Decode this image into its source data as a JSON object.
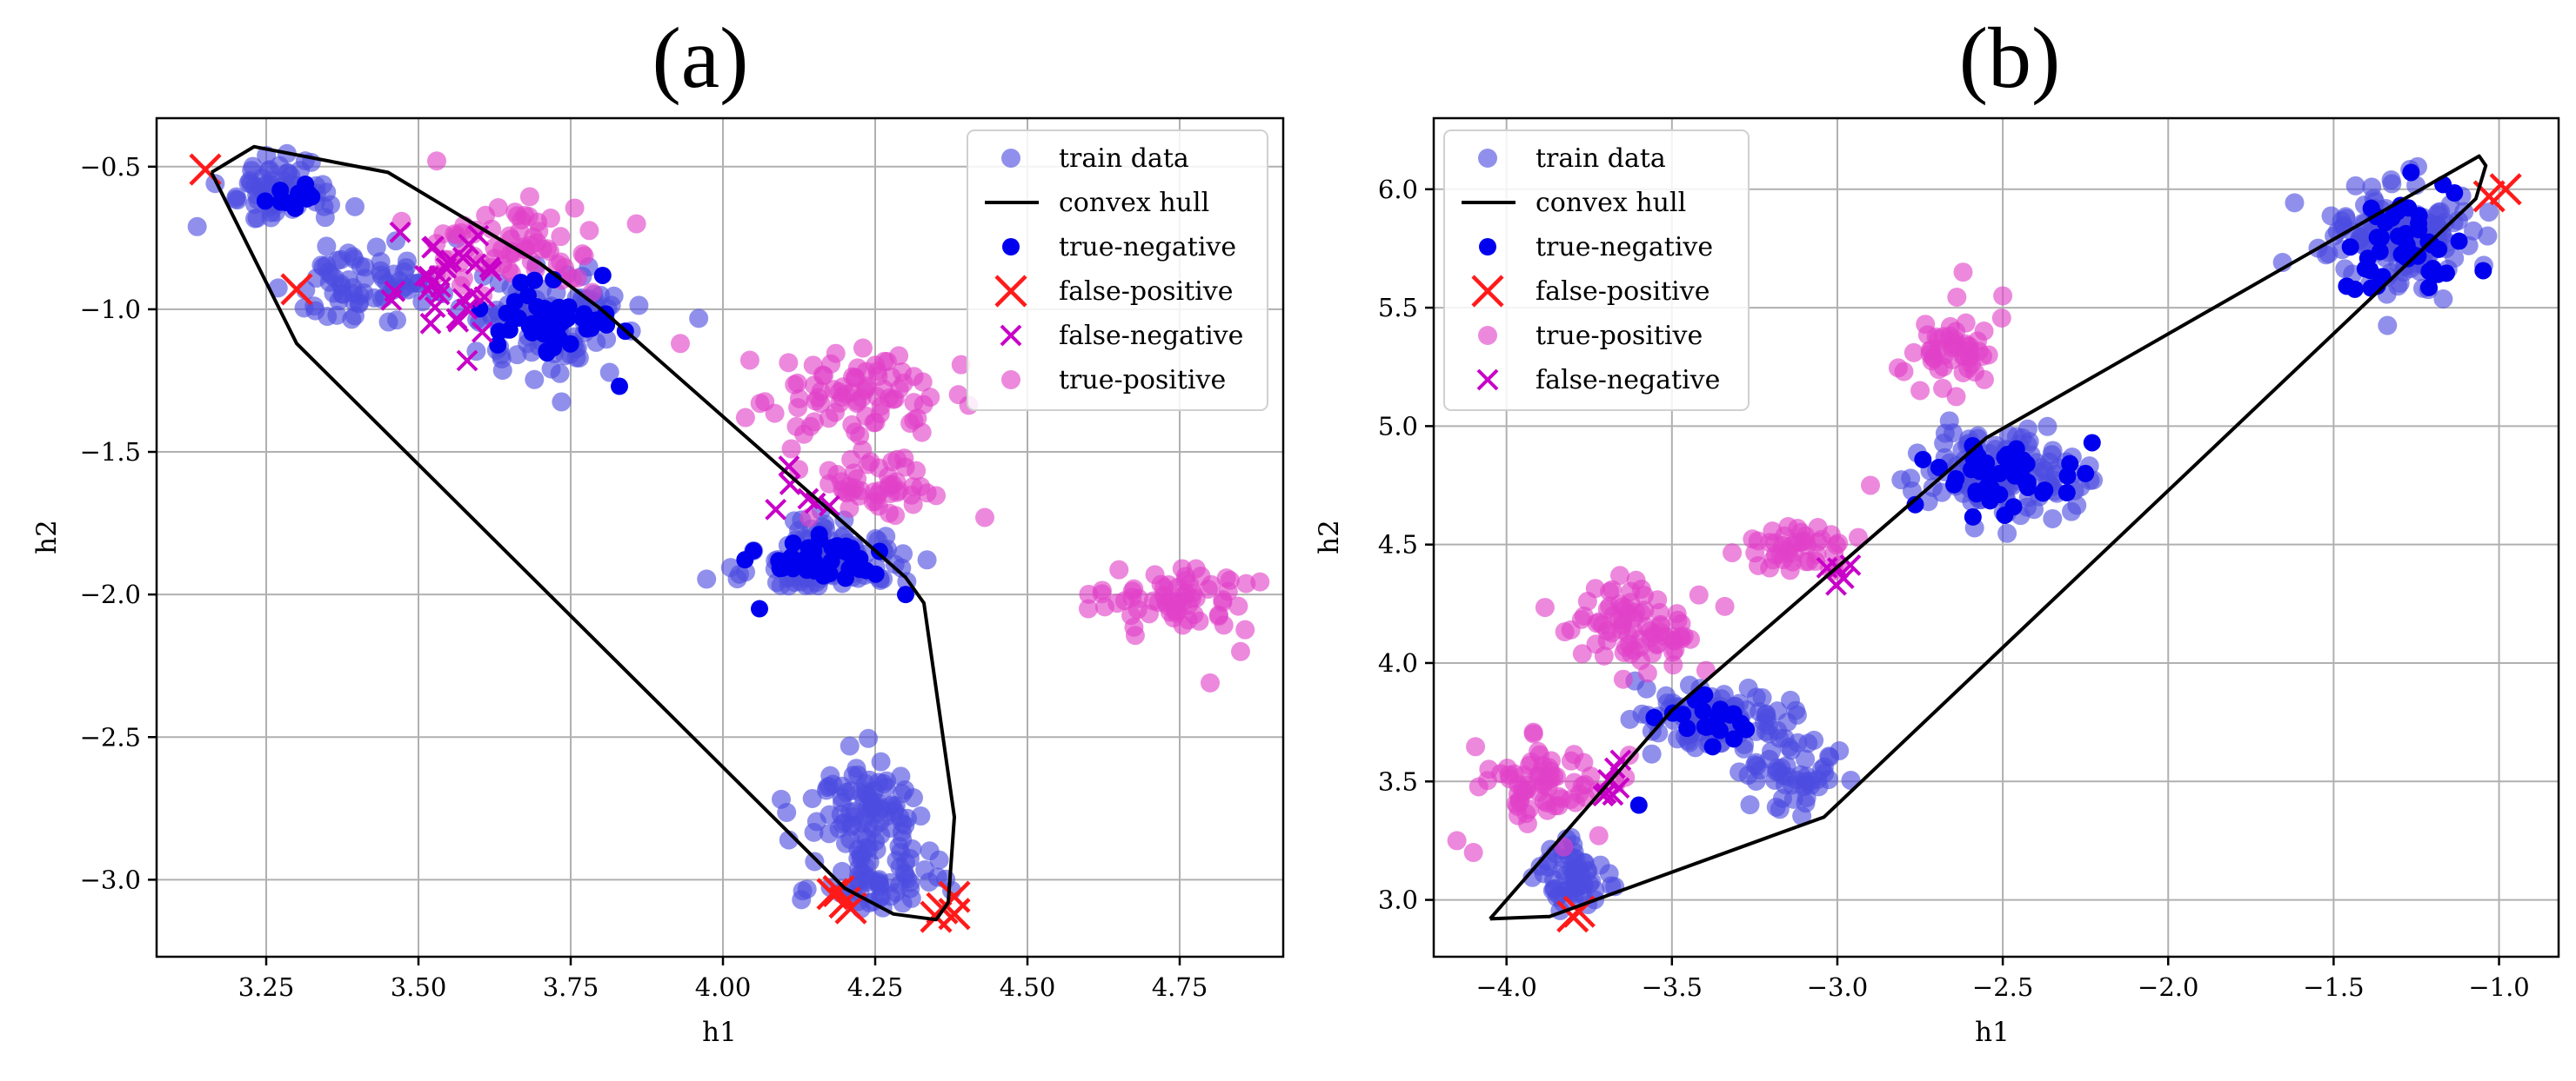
{
  "colors": {
    "train": "#4c4ce0",
    "true_negative": "#0000ee",
    "true_positive": "#e040c8",
    "false_negative": "#c800c8",
    "false_positive": "#ff1a1a",
    "hull": "#000000",
    "grid": "#b0b0b0"
  },
  "chart_data": [
    {
      "type": "scatter",
      "title": "(a)",
      "xlabel": "h1",
      "ylabel": "h2",
      "xlim": [
        3.07,
        4.92
      ],
      "ylim": [
        -3.27,
        -0.33
      ],
      "xticks": [
        3.25,
        3.5,
        3.75,
        4.0,
        4.25,
        4.5,
        4.75
      ],
      "xtick_labels": [
        "3.25",
        "3.50",
        "3.75",
        "4.00",
        "4.25",
        "4.50",
        "4.75"
      ],
      "yticks": [
        -0.5,
        -1.0,
        -1.5,
        -2.0,
        -2.5,
        -3.0
      ],
      "ytick_labels": [
        "−0.5",
        "−1.0",
        "−1.5",
        "−2.0",
        "−2.5",
        "−3.0"
      ],
      "grid": true,
      "legend_position": "top-right",
      "legend": [
        {
          "label": "train data",
          "marker": "circle",
          "style": "train"
        },
        {
          "label": "convex hull",
          "marker": "line",
          "style": "hull"
        },
        {
          "label": "true-negative",
          "marker": "circle",
          "style": "true_negative"
        },
        {
          "label": "false-positive",
          "marker": "x",
          "style": "false_positive"
        },
        {
          "label": "false-negative",
          "marker": "x",
          "style": "false_negative"
        },
        {
          "label": "true-positive",
          "marker": "circle",
          "style": "true_positive"
        }
      ],
      "convex_hull": [
        [
          3.16,
          -0.52
        ],
        [
          3.23,
          -0.43
        ],
        [
          3.45,
          -0.52
        ],
        [
          3.7,
          -0.84
        ],
        [
          3.8,
          -1.0
        ],
        [
          4.3,
          -1.94
        ],
        [
          4.33,
          -2.03
        ],
        [
          4.38,
          -2.78
        ],
        [
          4.37,
          -3.08
        ],
        [
          4.35,
          -3.14
        ],
        [
          4.28,
          -3.12
        ],
        [
          4.2,
          -3.03
        ],
        [
          3.3,
          -1.12
        ],
        [
          3.16,
          -0.52
        ]
      ],
      "clusters": [
        {
          "name": "train-a-1",
          "style": "train",
          "marker": "circle",
          "cx": 3.27,
          "cy": -0.58,
          "sx": 0.05,
          "sy": 0.06,
          "n": 70
        },
        {
          "name": "train-a-2",
          "style": "train",
          "marker": "circle",
          "cx": 3.42,
          "cy": -0.92,
          "sx": 0.06,
          "sy": 0.07,
          "n": 70
        },
        {
          "name": "train-a-3",
          "style": "train",
          "marker": "circle",
          "cx": 3.72,
          "cy": -1.05,
          "sx": 0.06,
          "sy": 0.08,
          "n": 110
        },
        {
          "name": "train-a-4",
          "style": "train",
          "marker": "circle",
          "cx": 4.17,
          "cy": -1.87,
          "sx": 0.06,
          "sy": 0.06,
          "n": 110
        },
        {
          "name": "train-a-5",
          "style": "train",
          "marker": "circle",
          "cx": 4.24,
          "cy": -2.75,
          "sx": 0.05,
          "sy": 0.09,
          "n": 90
        },
        {
          "name": "train-a-6",
          "style": "train",
          "marker": "circle",
          "cx": 4.25,
          "cy": -3.0,
          "sx": 0.06,
          "sy": 0.05,
          "n": 60
        },
        {
          "name": "true-negative-a-1",
          "style": "true_negative",
          "marker": "circle",
          "cx": 3.72,
          "cy": -1.03,
          "sx": 0.05,
          "sy": 0.07,
          "n": 45
        },
        {
          "name": "true-negative-a-2",
          "style": "true_negative",
          "marker": "circle",
          "cx": 4.15,
          "cy": -1.88,
          "sx": 0.05,
          "sy": 0.04,
          "n": 40
        },
        {
          "name": "true-negative-a-3",
          "style": "true_negative",
          "marker": "circle",
          "cx": 3.3,
          "cy": -0.6,
          "sx": 0.03,
          "sy": 0.04,
          "n": 12
        },
        {
          "name": "true-positive-a-1",
          "style": "true_positive",
          "marker": "circle",
          "cx": 3.65,
          "cy": -0.78,
          "sx": 0.07,
          "sy": 0.08,
          "n": 70
        },
        {
          "name": "true-positive-a-2",
          "style": "true_positive",
          "marker": "circle",
          "cx": 4.22,
          "cy": -1.28,
          "sx": 0.07,
          "sy": 0.07,
          "n": 80
        },
        {
          "name": "true-positive-a-3",
          "style": "true_positive",
          "marker": "circle",
          "cx": 4.23,
          "cy": -1.62,
          "sx": 0.06,
          "sy": 0.06,
          "n": 50
        },
        {
          "name": "true-positive-a-4",
          "style": "true_positive",
          "marker": "circle",
          "cx": 4.74,
          "cy": -2.03,
          "sx": 0.06,
          "sy": 0.06,
          "n": 65
        },
        {
          "name": "false-negative-a-1",
          "style": "false_negative",
          "marker": "x",
          "cx": 3.55,
          "cy": -0.88,
          "sx": 0.04,
          "sy": 0.09,
          "n": 28
        },
        {
          "name": "false-negative-a-2",
          "style": "false_negative",
          "marker": "x",
          "cx": 4.13,
          "cy": -1.65,
          "sx": 0.02,
          "sy": 0.05,
          "n": 6
        }
      ],
      "points": [
        {
          "name": "false-positive-a",
          "style": "false_positive",
          "marker": "x",
          "pts": [
            [
              3.15,
              -0.51
            ],
            [
              3.3,
              -0.93
            ],
            [
              4.18,
              -3.05
            ],
            [
              4.2,
              -3.08
            ],
            [
              4.21,
              -3.1
            ],
            [
              4.19,
              -3.04
            ],
            [
              4.36,
              -3.1
            ],
            [
              4.38,
              -3.06
            ],
            [
              4.38,
              -3.12
            ],
            [
              4.35,
              -3.13
            ]
          ]
        },
        {
          "name": "true-negative-a-outliers",
          "style": "true_negative",
          "marker": "circle",
          "pts": [
            [
              3.83,
              -1.27
            ],
            [
              4.06,
              -2.05
            ],
            [
              4.3,
              -2.0
            ]
          ]
        },
        {
          "name": "true-positive-a-outliers",
          "style": "true_positive",
          "marker": "circle",
          "pts": [
            [
              3.53,
              -0.48
            ],
            [
              3.93,
              -1.12
            ],
            [
              4.43,
              -1.73
            ],
            [
              4.6,
              -2.05
            ],
            [
              4.8,
              -2.31
            ],
            [
              4.85,
              -2.2
            ]
          ]
        },
        {
          "name": "false-negative-a-outliers",
          "style": "false_negative",
          "marker": "x",
          "pts": [
            [
              3.47,
              -0.73
            ],
            [
              3.58,
              -1.18
            ],
            [
              3.52,
              -1.05
            ]
          ]
        }
      ]
    },
    {
      "type": "scatter",
      "title": "(b)",
      "xlabel": "h1",
      "ylabel": "h2",
      "xlim": [
        -4.22,
        -0.82
      ],
      "ylim": [
        2.76,
        6.3
      ],
      "xticks": [
        -4.0,
        -3.5,
        -3.0,
        -2.5,
        -2.0,
        -1.5,
        -1.0
      ],
      "xtick_labels": [
        "−4.0",
        "−3.5",
        "−3.0",
        "−2.5",
        "−2.0",
        "−1.5",
        "−1.0"
      ],
      "yticks": [
        3.0,
        3.5,
        4.0,
        4.5,
        5.0,
        5.5,
        6.0
      ],
      "ytick_labels": [
        "3.0",
        "3.5",
        "4.0",
        "4.5",
        "5.0",
        "5.5",
        "6.0"
      ],
      "grid": true,
      "legend_position": "top-left",
      "legend": [
        {
          "label": "train data",
          "marker": "circle",
          "style": "train"
        },
        {
          "label": "convex hull",
          "marker": "line",
          "style": "hull"
        },
        {
          "label": "true-negative",
          "marker": "circle",
          "style": "true_negative"
        },
        {
          "label": "false-positive",
          "marker": "x",
          "style": "false_positive"
        },
        {
          "label": "true-positive",
          "marker": "circle",
          "style": "true_positive"
        },
        {
          "label": "false-negative",
          "marker": "x",
          "style": "false_negative"
        }
      ],
      "convex_hull": [
        [
          -4.05,
          2.92
        ],
        [
          -3.87,
          2.93
        ],
        [
          -3.04,
          3.35
        ],
        [
          -1.07,
          5.96
        ],
        [
          -1.04,
          6.1
        ],
        [
          -1.06,
          6.14
        ],
        [
          -2.55,
          4.95
        ],
        [
          -3.5,
          3.8
        ],
        [
          -4.05,
          2.92
        ]
      ],
      "clusters": [
        {
          "name": "train-b-1",
          "style": "train",
          "marker": "circle",
          "cx": -3.8,
          "cy": 3.1,
          "sx": 0.05,
          "sy": 0.07,
          "n": 60
        },
        {
          "name": "train-b-2",
          "style": "train",
          "marker": "circle",
          "cx": -3.38,
          "cy": 3.78,
          "sx": 0.1,
          "sy": 0.07,
          "n": 90
        },
        {
          "name": "train-b-3",
          "style": "train",
          "marker": "circle",
          "cx": -3.15,
          "cy": 3.55,
          "sx": 0.07,
          "sy": 0.1,
          "n": 60
        },
        {
          "name": "train-b-4",
          "style": "train",
          "marker": "circle",
          "cx": -2.5,
          "cy": 4.8,
          "sx": 0.12,
          "sy": 0.09,
          "n": 120
        },
        {
          "name": "train-b-5",
          "style": "train",
          "marker": "circle",
          "cx": -1.3,
          "cy": 5.8,
          "sx": 0.12,
          "sy": 0.13,
          "n": 140
        },
        {
          "name": "true-negative-b-1",
          "style": "true_negative",
          "marker": "circle",
          "cx": -2.52,
          "cy": 4.78,
          "sx": 0.1,
          "sy": 0.08,
          "n": 45
        },
        {
          "name": "true-negative-b-2",
          "style": "true_negative",
          "marker": "circle",
          "cx": -1.3,
          "cy": 5.78,
          "sx": 0.1,
          "sy": 0.12,
          "n": 45
        },
        {
          "name": "true-negative-b-3",
          "style": "true_negative",
          "marker": "circle",
          "cx": -3.38,
          "cy": 3.75,
          "sx": 0.08,
          "sy": 0.06,
          "n": 20
        },
        {
          "name": "true-positive-b-1",
          "style": "true_positive",
          "marker": "circle",
          "cx": -3.85,
          "cy": 3.5,
          "sx": 0.1,
          "sy": 0.08,
          "n": 70
        },
        {
          "name": "true-positive-b-2",
          "style": "true_positive",
          "marker": "circle",
          "cx": -3.6,
          "cy": 4.15,
          "sx": 0.1,
          "sy": 0.1,
          "n": 80
        },
        {
          "name": "true-positive-b-3",
          "style": "true_positive",
          "marker": "circle",
          "cx": -3.12,
          "cy": 4.5,
          "sx": 0.08,
          "sy": 0.06,
          "n": 45
        },
        {
          "name": "true-positive-b-4",
          "style": "true_positive",
          "marker": "circle",
          "cx": -2.65,
          "cy": 5.32,
          "sx": 0.08,
          "sy": 0.08,
          "n": 50
        },
        {
          "name": "false-negative-b-1",
          "style": "false_negative",
          "marker": "x",
          "cx": -3.68,
          "cy": 3.52,
          "sx": 0.03,
          "sy": 0.07,
          "n": 7
        },
        {
          "name": "false-negative-b-2",
          "style": "false_negative",
          "marker": "x",
          "cx": -3.02,
          "cy": 4.38,
          "sx": 0.05,
          "sy": 0.04,
          "n": 5
        }
      ],
      "points": [
        {
          "name": "false-positive-b",
          "style": "false_positive",
          "marker": "x",
          "pts": [
            [
              -3.8,
              2.93
            ],
            [
              -3.78,
              2.95
            ],
            [
              -1.03,
              5.97
            ],
            [
              -0.98,
              6.0
            ]
          ]
        },
        {
          "name": "true-negative-b-outliers",
          "style": "true_negative",
          "marker": "circle",
          "pts": [
            [
              -3.6,
              3.4
            ],
            [
              -2.23,
              4.93
            ],
            [
              -2.25,
              4.8
            ]
          ]
        },
        {
          "name": "true-positive-b-outliers",
          "style": "true_positive",
          "marker": "circle",
          "pts": [
            [
              -4.15,
              3.25
            ],
            [
              -4.1,
              3.2
            ],
            [
              -2.62,
              5.65
            ],
            [
              -2.5,
              5.55
            ],
            [
              -2.9,
              4.75
            ],
            [
              -2.75,
              5.15
            ]
          ]
        }
      ]
    }
  ]
}
